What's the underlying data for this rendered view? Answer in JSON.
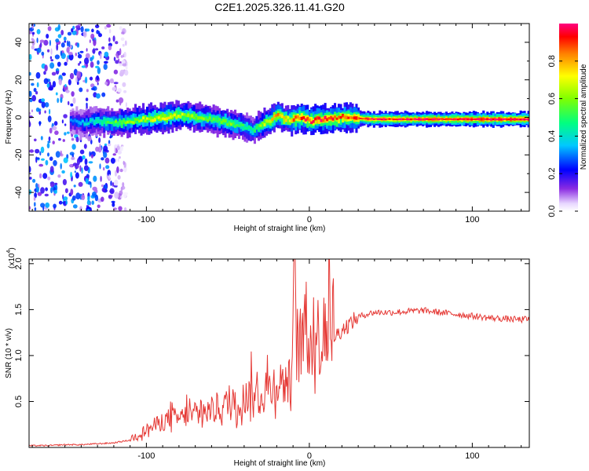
{
  "title": "C2E1.2025.326.11.41.G20",
  "chart_data": [
    {
      "type": "heatmap",
      "xlabel": "Height of straight line (km)",
      "ylabel": "Frequency (Hz)",
      "xlim": [
        -172,
        135
      ],
      "ylim": [
        -50,
        50
      ],
      "xticks": [
        -100,
        0,
        100
      ],
      "xtick_labels": [
        "-100",
        "0",
        "100"
      ],
      "yticks": [
        -40,
        -20,
        0,
        20,
        40
      ],
      "ytick_labels": [
        "-40",
        "-20",
        "0",
        "20",
        "40"
      ],
      "colorbar": {
        "label": "Normalized spectral amplitude",
        "range": [
          0,
          1
        ],
        "ticks": [
          0.0,
          0.2,
          0.4,
          0.6,
          0.8
        ],
        "tick_labels": [
          "0.0",
          "0.2",
          "0.4",
          "0.6",
          "0.8"
        ]
      },
      "ridge": {
        "x": [
          -147,
          -140,
          -130,
          -120,
          -110,
          -100,
          -90,
          -80,
          -70,
          -60,
          -50,
          -40,
          -35,
          -30,
          -25,
          -20,
          -15,
          -10,
          -5,
          0,
          5,
          10,
          20,
          40,
          60,
          80,
          100,
          120,
          135
        ],
        "freq": [
          -2,
          -3,
          -2,
          -3,
          -2,
          -1,
          0,
          1,
          0,
          -1,
          -3,
          -5,
          -7,
          -4,
          -2,
          1,
          -1,
          -1,
          0,
          -2,
          -1,
          -1,
          0,
          -1,
          -1,
          -1,
          -1,
          -1,
          -1
        ],
        "amplitude": [
          0.3,
          0.35,
          0.45,
          0.55,
          0.6,
          0.65,
          0.7,
          0.65,
          0.6,
          0.55,
          0.6,
          0.5,
          0.45,
          0.6,
          0.7,
          0.8,
          0.7,
          0.85,
          0.9,
          0.9,
          0.95,
          0.9,
          0.85,
          0.95,
          0.95,
          0.98,
          1.0,
          1.0,
          1.0
        ]
      },
      "noise_region": {
        "x_range": [
          -172,
          -112
        ],
        "amplitude": [
          0.05,
          0.35
        ]
      }
    },
    {
      "type": "line",
      "xlabel": "Height of straight line (km)",
      "ylabel": "SNR (10 * v/v)",
      "multiplier_label": "(x10",
      "multiplier_exponent": "4",
      "xlim": [
        -172,
        135
      ],
      "ylim": [
        0,
        2.05
      ],
      "xticks": [
        -100,
        0,
        100
      ],
      "xtick_labels": [
        "-100",
        "0",
        "100"
      ],
      "yticks": [
        0.5,
        1.0,
        1.5,
        2.0
      ],
      "ytick_labels": [
        "0.5",
        "1.0",
        "1.5",
        "2.0"
      ],
      "color": "#e53935",
      "series": [
        {
          "name": "SNR",
          "x": [
            -172,
            -160,
            -150,
            -140,
            -130,
            -120,
            -110,
            -105,
            -100,
            -95,
            -90,
            -85,
            -80,
            -75,
            -70,
            -65,
            -60,
            -55,
            -50,
            -45,
            -40,
            -35,
            -30,
            -25,
            -20,
            -15,
            -12,
            -10,
            -9,
            -8,
            -6,
            -4,
            -2,
            0,
            2,
            4,
            6,
            8,
            10,
            12,
            15,
            20,
            25,
            30,
            35,
            40,
            50,
            60,
            70,
            80,
            90,
            100,
            110,
            120,
            130,
            135
          ],
          "y": [
            0.02,
            0.02,
            0.03,
            0.03,
            0.04,
            0.05,
            0.08,
            0.12,
            0.16,
            0.2,
            0.24,
            0.27,
            0.26,
            0.3,
            0.28,
            0.32,
            0.34,
            0.36,
            0.4,
            0.38,
            0.45,
            0.5,
            0.45,
            0.55,
            0.6,
            0.58,
            0.6,
            1.05,
            1.8,
            0.9,
            0.95,
            1.0,
            1.05,
            1.0,
            0.95,
            1.02,
            1.05,
            0.9,
            1.0,
            1.15,
            1.2,
            1.28,
            1.35,
            1.42,
            1.45,
            1.47,
            1.47,
            1.48,
            1.49,
            1.47,
            1.45,
            1.43,
            1.41,
            1.4,
            1.39,
            1.4
          ]
        }
      ]
    }
  ]
}
